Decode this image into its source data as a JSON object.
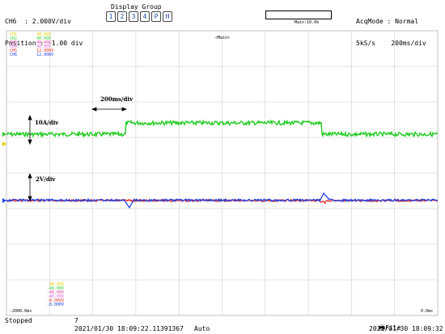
{
  "header": {
    "channel_line": "CH6  : 2.000V/div",
    "position_line": "Position : -1.00 div",
    "display_group_label": "Display Group",
    "display_group_buttons": [
      "1",
      "2",
      "3",
      "4",
      "P",
      "H"
    ],
    "zoom_label": "Main:10.0k",
    "acq_mode_line": "AcqMode : Normal",
    "sample_rate": "5kS/s",
    "time_div": "200ms/div"
  },
  "plot": {
    "main_label": "<Main>",
    "channels": [
      {
        "name": "CH1",
        "value": "40.00V",
        "color": "#e0d000"
      },
      {
        "name": "CH2",
        "value": "40.00V",
        "color": "#33cc33"
      },
      {
        "name": "CH3",
        "value": "40.00V",
        "color": "#e040a0"
      },
      {
        "name": "CH4",
        "value": "40.00V",
        "color": "#e060e0"
      },
      {
        "name": "CH5",
        "value": "12.000V",
        "color": "#e03030"
      },
      {
        "name": "CH6",
        "value": "12.000V",
        "color": "#2040e0"
      }
    ],
    "bottom_channels": [
      {
        "value": "-40.00V",
        "color": "#e0d000"
      },
      {
        "value": "-40.00V",
        "color": "#33cc33"
      },
      {
        "value": "-40.00V",
        "color": "#e040a0"
      },
      {
        "value": "-40.00V",
        "color": "#e060e0"
      },
      {
        "value": "-8.000V",
        "color": "#e03030"
      },
      {
        "value": "-8.000V",
        "color": "#2040e0"
      }
    ],
    "annotations": {
      "time": "200ms/div",
      "current": "10A/div",
      "voltage": "2V/div"
    },
    "left_time": "-2000.0ms",
    "right_time": "0.0ms"
  },
  "footer": {
    "status": "Stopped",
    "count": "7",
    "timestamp_left": "2021/01/30 18:09:22.11391367",
    "trigger_mode": "Auto",
    "file_label": "File",
    "timestamp_right": "2021/01/30 18:09:32"
  }
}
